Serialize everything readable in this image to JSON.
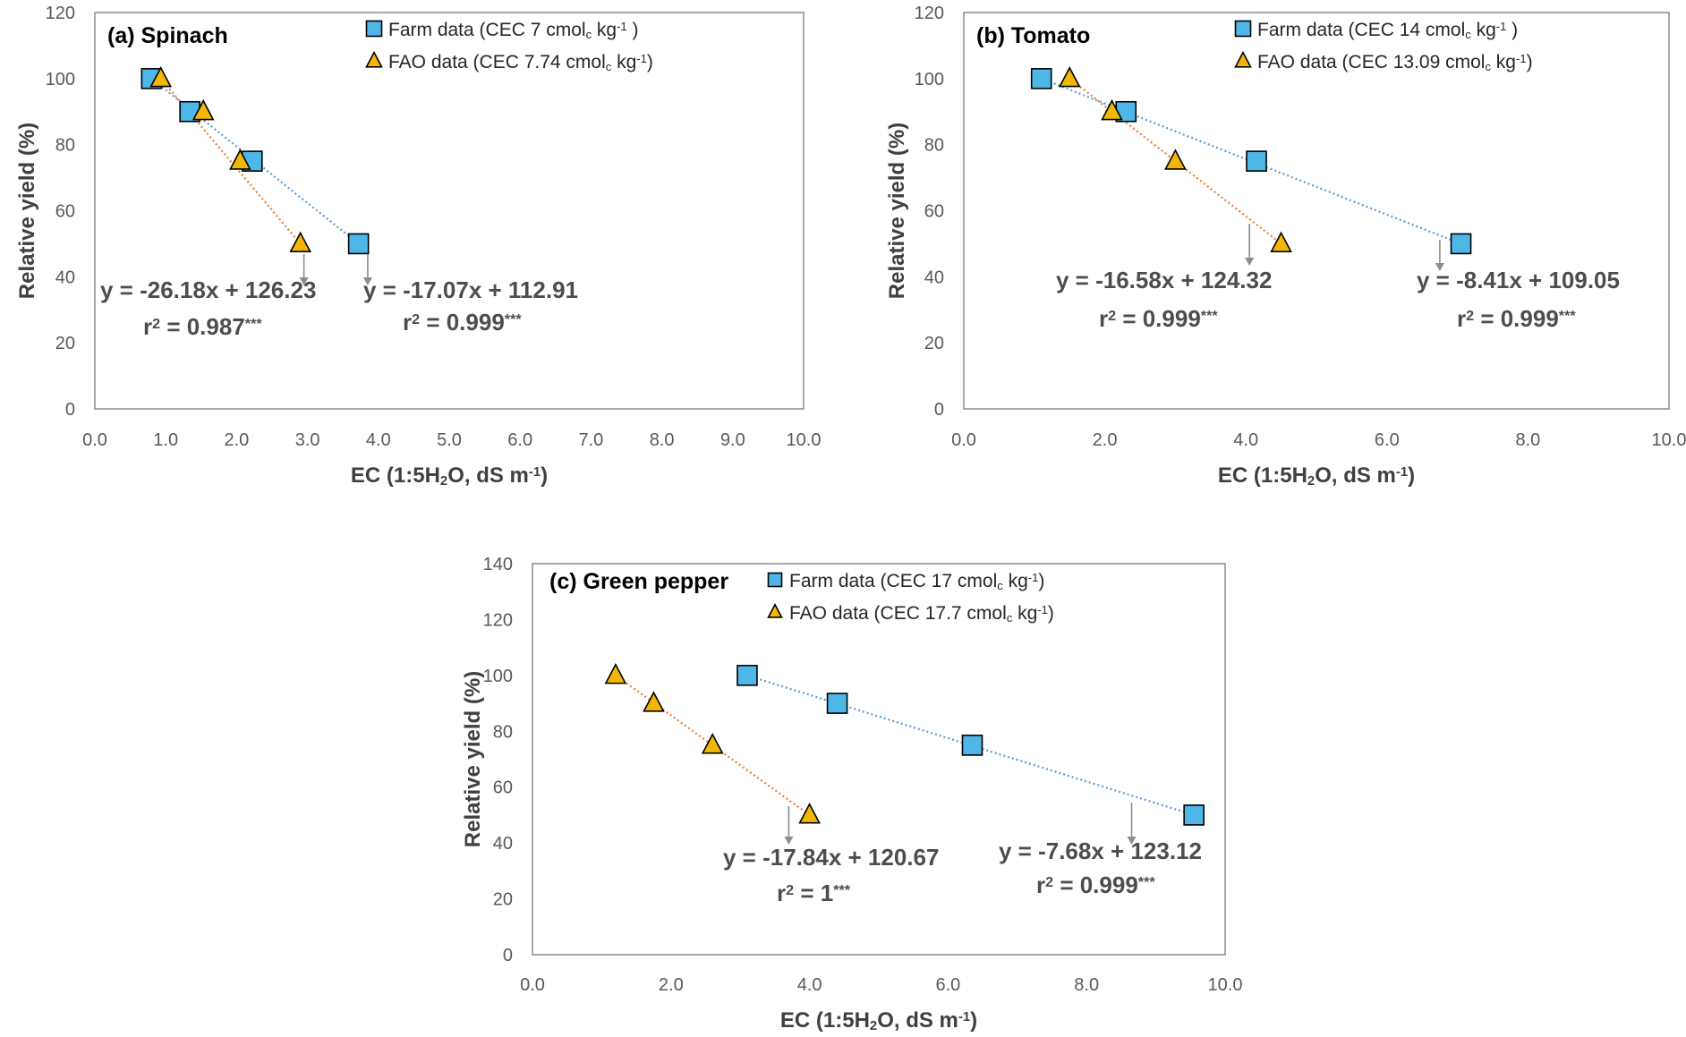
{
  "colors": {
    "farm_fill": "#4FB6E8",
    "fao_fill": "#F2B705",
    "farm_line": "#5B9BD5",
    "fao_line": "#ED7D31",
    "arrow": "#8c8c8c"
  },
  "chart_data": [
    {
      "type": "scatter",
      "title": "(a) Spinach",
      "xlabel": "EC (1:5H₂O, dS m⁻¹)",
      "ylabel": "Relative yield (%)",
      "xlim": [
        0,
        10
      ],
      "ylim": [
        0,
        120
      ],
      "xticks": [
        0,
        1,
        2,
        3,
        4,
        5,
        6,
        7,
        8,
        9,
        10
      ],
      "xtick_labels": [
        "0.0",
        "1.0",
        "2.0",
        "3.0",
        "4.0",
        "5.0",
        "6.0",
        "7.0",
        "8.0",
        "9.0",
        "10.0"
      ],
      "yticks": [
        0,
        20,
        40,
        60,
        80,
        100,
        120
      ],
      "ytick_labels": [
        "0",
        "20",
        "40",
        "60",
        "80",
        "100",
        "120"
      ],
      "grid": false,
      "series": [
        {
          "name": "Farm data (CEC 7 cmolᴄ kg⁻¹ )",
          "marker": "square",
          "x": [
            0.8,
            1.34,
            2.22,
            3.72
          ],
          "y": [
            100,
            90,
            75,
            50
          ],
          "equation": "y = -17.07x + 112.91",
          "r2": "r² = 0.999***",
          "arrow_x": 3.85
        },
        {
          "name": "FAO data  (CEC 7.74 cmolᴄ kg⁻¹)",
          "marker": "triangle",
          "x": [
            0.93,
            1.53,
            2.05,
            2.9
          ],
          "y": [
            100,
            90,
            75,
            50
          ],
          "equation": "y = -26.18x + 126.23",
          "r2": "r² = 0.987***",
          "arrow_x": 2.95
        }
      ]
    },
    {
      "type": "scatter",
      "title": "(b) Tomato",
      "xlabel": "EC (1:5H₂O, dS m⁻¹)",
      "ylabel": "Relative yield (%)",
      "xlim": [
        0,
        10
      ],
      "ylim": [
        0,
        120
      ],
      "xticks": [
        0,
        2,
        4,
        6,
        8,
        10
      ],
      "xtick_labels": [
        "0.0",
        "2.0",
        "4.0",
        "6.0",
        "8.0",
        "10.0"
      ],
      "yticks": [
        0,
        20,
        40,
        60,
        80,
        100,
        120
      ],
      "ytick_labels": [
        "0",
        "20",
        "40",
        "60",
        "80",
        "100",
        "120"
      ],
      "grid": false,
      "series": [
        {
          "name": "Farm data (CEC 14 cmolᴄ kg⁻¹ )",
          "marker": "square",
          "x": [
            1.1,
            2.3,
            4.15,
            7.05
          ],
          "y": [
            100,
            90,
            75,
            50
          ],
          "equation": "y = -8.41x + 109.05",
          "r2": "r² = 0.999***",
          "arrow_x": 6.75
        },
        {
          "name": "FAO data  (CEC 13.09 cmolᴄ kg⁻¹)",
          "marker": "triangle",
          "x": [
            1.5,
            2.1,
            3.0,
            4.5
          ],
          "y": [
            100,
            90,
            75,
            50
          ],
          "equation": "y = -16.58x + 124.32",
          "r2": "r² = 0.999***",
          "arrow_x": 4.05
        }
      ]
    },
    {
      "type": "scatter",
      "title": "(c) Green pepper",
      "xlabel": "EC (1:5H₂O, dS m⁻¹)",
      "ylabel": "Relative yield (%)",
      "xlim": [
        0,
        10
      ],
      "ylim": [
        0,
        140
      ],
      "xticks": [
        0,
        2,
        4,
        6,
        8,
        10
      ],
      "xtick_labels": [
        "0.0",
        "2.0",
        "4.0",
        "6.0",
        "8.0",
        "10.0"
      ],
      "yticks": [
        0,
        20,
        40,
        60,
        80,
        100,
        120,
        140
      ],
      "ytick_labels": [
        "0",
        "20",
        "40",
        "60",
        "80",
        "100",
        "120",
        "140"
      ],
      "grid": false,
      "series": [
        {
          "name": "Farm data (CEC 17 cmolᴄ kg⁻¹)",
          "marker": "square",
          "x": [
            3.1,
            4.4,
            6.35,
            9.55
          ],
          "y": [
            100,
            90,
            75,
            50
          ],
          "equation": "y = -7.68x + 123.12",
          "r2": "r² = 0.999***",
          "arrow_x": 8.65
        },
        {
          "name": "FAO data  (CEC 17.7 cmolᴄ kg⁻¹)",
          "marker": "triangle",
          "x": [
            1.2,
            1.75,
            2.6,
            4.0
          ],
          "y": [
            100,
            90,
            75,
            50
          ],
          "equation": "y = -17.84x + 120.67",
          "r2": "r² = 1***",
          "arrow_x": 3.7
        }
      ]
    }
  ]
}
